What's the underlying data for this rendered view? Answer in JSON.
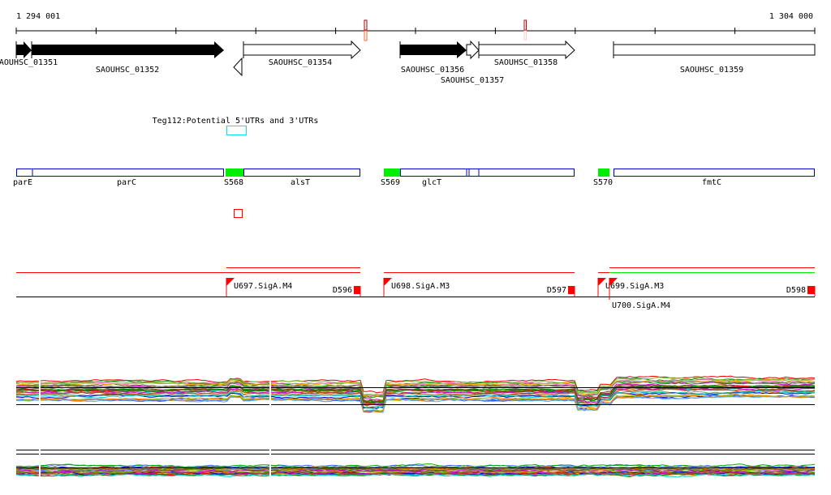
{
  "ruler": {
    "start_label": "1 294 001",
    "end_label": "1 304 000"
  },
  "genes": [
    {
      "label": "SAOUHSC_01351",
      "strand": "+",
      "fill": "#000000"
    },
    {
      "label": "SAOUHSC_01352",
      "strand": "+",
      "fill": "#000000"
    },
    {
      "label": "SAOUHSC_01354",
      "strand": "+",
      "fill": "#ffffff"
    },
    {
      "label": "SAOUHSC_01356",
      "strand": "+",
      "fill": "#000000"
    },
    {
      "label": "SAOUHSC_01357",
      "strand": "+",
      "fill": "#ffffff"
    },
    {
      "label": "SAOUHSC_01358",
      "strand": "+",
      "fill": "#ffffff"
    },
    {
      "label": "SAOUHSC_01359",
      "strand": "+",
      "fill": "#ffffff"
    }
  ],
  "feature": {
    "label": "Teg112:Potential 5'UTRs and 3'UTRs",
    "color": "#00e5ee"
  },
  "operons": {
    "labels": [
      "parE",
      "parC",
      "S568",
      "alsT",
      "S569",
      "glcT",
      "S570",
      "fmtC"
    ],
    "box_color": "#0000cc",
    "site_color": "#00ee00"
  },
  "transcripts": {
    "starts": [
      "U697.SigA.M4",
      "U698.SigA.M3",
      "U699.SigA.M3",
      "U700.SigA.M4"
    ],
    "ends": [
      "D596",
      "D597",
      "D598"
    ],
    "colors": {
      "red": "#ff0000",
      "green": "#00ee00"
    }
  }
}
